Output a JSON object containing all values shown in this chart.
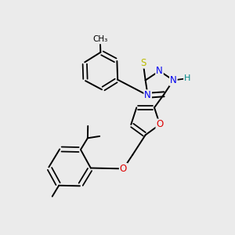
{
  "background_color": "#ebebeb",
  "atom_colors": {
    "C": "#000000",
    "N": "#0000ee",
    "O": "#dd0000",
    "S": "#bbbb00",
    "H": "#008888"
  },
  "bond_color": "#000000",
  "bond_width": 1.4,
  "fig_size": [
    3.0,
    3.0
  ],
  "dpi": 100
}
